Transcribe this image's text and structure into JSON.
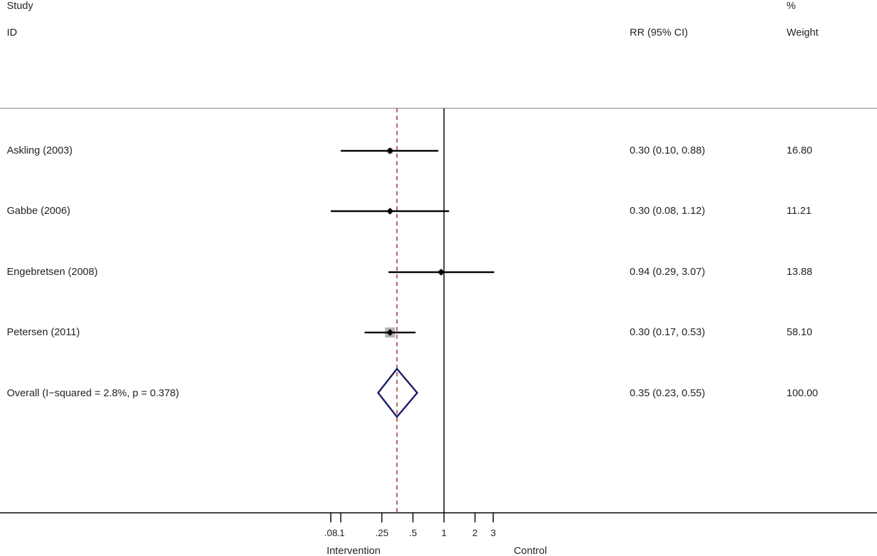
{
  "header": {
    "study_line1": "Study",
    "study_line2": "ID",
    "rr_label": "RR (95% CI)",
    "weight_line1": "%",
    "weight_line2": "Weight"
  },
  "chart_data": {
    "type": "forest",
    "x_scale": "log",
    "xlim": [
      0.08,
      3.07
    ],
    "reference_line": 1,
    "pooled_line": 0.35,
    "studies": [
      {
        "label": "Askling (2003)",
        "rr": 0.3,
        "lo": 0.1,
        "hi": 0.88,
        "ci_text": "0.30 (0.10, 0.88)",
        "weight": 16.8,
        "weight_text": "16.80"
      },
      {
        "label": "Gabbe (2006)",
        "rr": 0.3,
        "lo": 0.08,
        "hi": 1.12,
        "ci_text": "0.30 (0.08, 1.12)",
        "weight": 11.21,
        "weight_text": "11.21"
      },
      {
        "label": "Engebretsen (2008)",
        "rr": 0.94,
        "lo": 0.29,
        "hi": 3.07,
        "ci_text": "0.94 (0.29, 3.07)",
        "weight": 13.88,
        "weight_text": "13.88"
      },
      {
        "label": "Petersen (2011)",
        "rr": 0.3,
        "lo": 0.17,
        "hi": 0.53,
        "ci_text": "0.30 (0.17, 0.53)",
        "weight": 58.1,
        "weight_text": "58.10"
      }
    ],
    "overall": {
      "label": "Overall  (I−squared = 2.8%, p = 0.378)",
      "rr": 0.35,
      "lo": 0.23,
      "hi": 0.55,
      "ci_text": "0.35 (0.23, 0.55)",
      "weight_text": "100.00"
    },
    "ticks": [
      {
        "value": 0.08,
        "label": ".08"
      },
      {
        "value": 0.1,
        "label": ".1"
      },
      {
        "value": 0.25,
        "label": ".25"
      },
      {
        "value": 0.5,
        "label": ".5"
      },
      {
        "value": 1,
        "label": "1"
      },
      {
        "value": 2,
        "label": "2"
      },
      {
        "value": 3,
        "label": "3"
      }
    ],
    "left_axis_label": "Intervention",
    "right_axis_label": "Control",
    "colors": {
      "line": "#000000",
      "box": "#b3b3b3",
      "pooled_line": "#9b2d2d",
      "diamond": "#1b1b6b",
      "separator": "#a6a6a6"
    }
  }
}
